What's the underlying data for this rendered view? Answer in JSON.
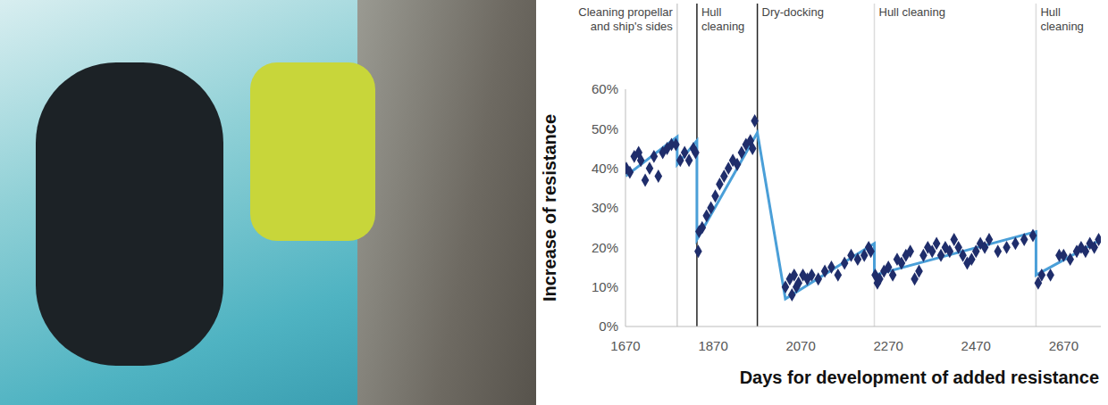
{
  "chart_data": {
    "type": "scatter",
    "x_label": "Days for development of added resistance",
    "y_label": "Increase of resistance",
    "xlim": [
      1670,
      2755
    ],
    "xticks": [
      1670,
      1870,
      2070,
      2270,
      2470,
      2670
    ],
    "ylim": [
      0,
      60
    ],
    "yticks": [
      {
        "value": 0,
        "label": "0%"
      },
      {
        "value": 10,
        "label": "10%"
      },
      {
        "value": 20,
        "label": "20%"
      },
      {
        "value": 30,
        "label": "30%"
      },
      {
        "value": 40,
        "label": "40%"
      },
      {
        "value": 50,
        "label": "50%"
      },
      {
        "value": 60,
        "label": "60%"
      }
    ],
    "grid": false,
    "annotations": [
      {
        "label": "Cleaning propellar and ship's sides",
        "x": 1788,
        "color": "#cfcfcf"
      },
      {
        "label": "Hull cleaning",
        "x": 1833,
        "color": "#222222"
      },
      {
        "label": "Dry-docking",
        "x": 1971,
        "color": "#222222"
      },
      {
        "label": "Hull cleaning",
        "x": 2238,
        "color": "#dcdcdc"
      },
      {
        "label": "Hull cleaning",
        "x": 2607,
        "color": "#dcdcdc"
      }
    ],
    "series": [
      {
        "type": "scatter",
        "marker": "diamond",
        "color": "#1f2d6b",
        "x": [
          1672,
          1680,
          1690,
          1700,
          1705,
          1715,
          1725,
          1735,
          1745,
          1755,
          1765,
          1775,
          1785,
          1795,
          1805,
          1815,
          1825,
          1830,
          1836,
          1838,
          1845,
          1855,
          1865,
          1875,
          1885,
          1895,
          1905,
          1915,
          1925,
          1935,
          1945,
          1955,
          1960,
          1965,
          2035,
          2045,
          2050,
          2055,
          2060,
          2065,
          2075,
          2085,
          2095,
          2110,
          2125,
          2140,
          2155,
          2170,
          2185,
          2200,
          2215,
          2225,
          2230,
          2240,
          2245,
          2250,
          2260,
          2270,
          2280,
          2290,
          2300,
          2310,
          2320,
          2330,
          2340,
          2350,
          2360,
          2370,
          2380,
          2390,
          2400,
          2410,
          2420,
          2430,
          2440,
          2450,
          2460,
          2470,
          2480,
          2490,
          2500,
          2520,
          2540,
          2560,
          2580,
          2600,
          2612,
          2620,
          2640,
          2660,
          2670,
          2685,
          2700,
          2710,
          2720,
          2730,
          2740,
          2750
        ],
        "values": [
          40,
          39,
          43,
          44,
          42,
          37,
          40,
          43,
          38,
          44,
          45,
          46,
          46,
          42,
          44,
          42,
          45,
          44,
          19,
          24,
          25,
          28,
          30,
          33,
          36,
          38,
          40,
          42,
          41,
          44,
          46,
          47,
          45,
          52,
          10,
          12,
          8,
          13,
          10,
          11,
          13,
          12,
          13,
          12,
          14,
          15,
          13,
          16,
          18,
          17,
          18,
          20,
          19,
          13,
          11,
          12,
          14,
          15,
          13,
          17,
          16,
          18,
          19,
          12,
          14,
          18,
          20,
          19,
          21,
          18,
          20,
          19,
          22,
          20,
          18,
          16,
          17,
          19,
          21,
          20,
          22,
          19,
          20,
          21,
          22,
          23,
          11,
          13,
          13,
          18,
          18,
          17,
          19,
          20,
          19,
          21,
          20,
          22
        ]
      },
      {
        "type": "line",
        "line_style": "solid",
        "color": "#4a9fd8",
        "x": [
          1670,
          1788,
          1788,
          1833,
          1833,
          1971,
          2035,
          2238,
          2238,
          2607,
          2607,
          2755
        ],
        "values": [
          38,
          48,
          41,
          47,
          22,
          49,
          7,
          21,
          13,
          24,
          13,
          22
        ]
      }
    ]
  }
}
